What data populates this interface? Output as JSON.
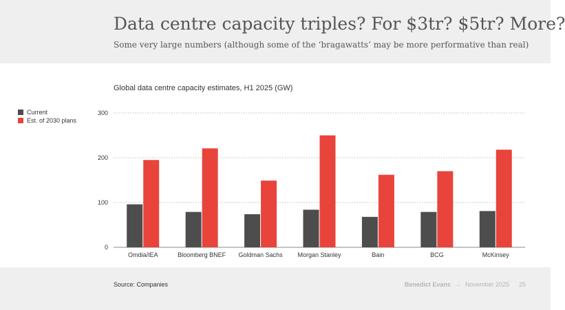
{
  "header": {
    "title": "Data centre capacity triples? For $3tr? $5tr? More?",
    "subtitle": "Some very large numbers (although some of the ‘bragawatts’ may be more performative than real)"
  },
  "legend": {
    "items": [
      {
        "label": "Current",
        "color": "#4d4d4d"
      },
      {
        "label": "Est. of 2030 plans",
        "color": "#e8443c"
      }
    ]
  },
  "chart_data": {
    "type": "bar",
    "title": "Global data centre capacity estimates, H1 2025 (GW)",
    "categories": [
      "Omdia/IEA",
      "Bloomberg BNEF",
      "Goldman Sachs",
      "Morgan Stanley",
      "Bain",
      "BCG",
      "McKinsey"
    ],
    "series": [
      {
        "name": "Current",
        "color": "#4d4d4d",
        "values": [
          96,
          79,
          74,
          84,
          68,
          79,
          81
        ]
      },
      {
        "name": "Est. of 2030 plans",
        "color": "#e8443c",
        "values": [
          195,
          221,
          149,
          250,
          162,
          170,
          218
        ]
      }
    ],
    "ylim": [
      0,
      300
    ],
    "yticks": [
      0,
      100,
      200,
      300
    ],
    "grid": true,
    "legend_position": "left"
  },
  "footer": {
    "source": "Source: Companies",
    "author": "Benedict Evans",
    "separator": "→",
    "date": "November 2025",
    "page": "25"
  }
}
